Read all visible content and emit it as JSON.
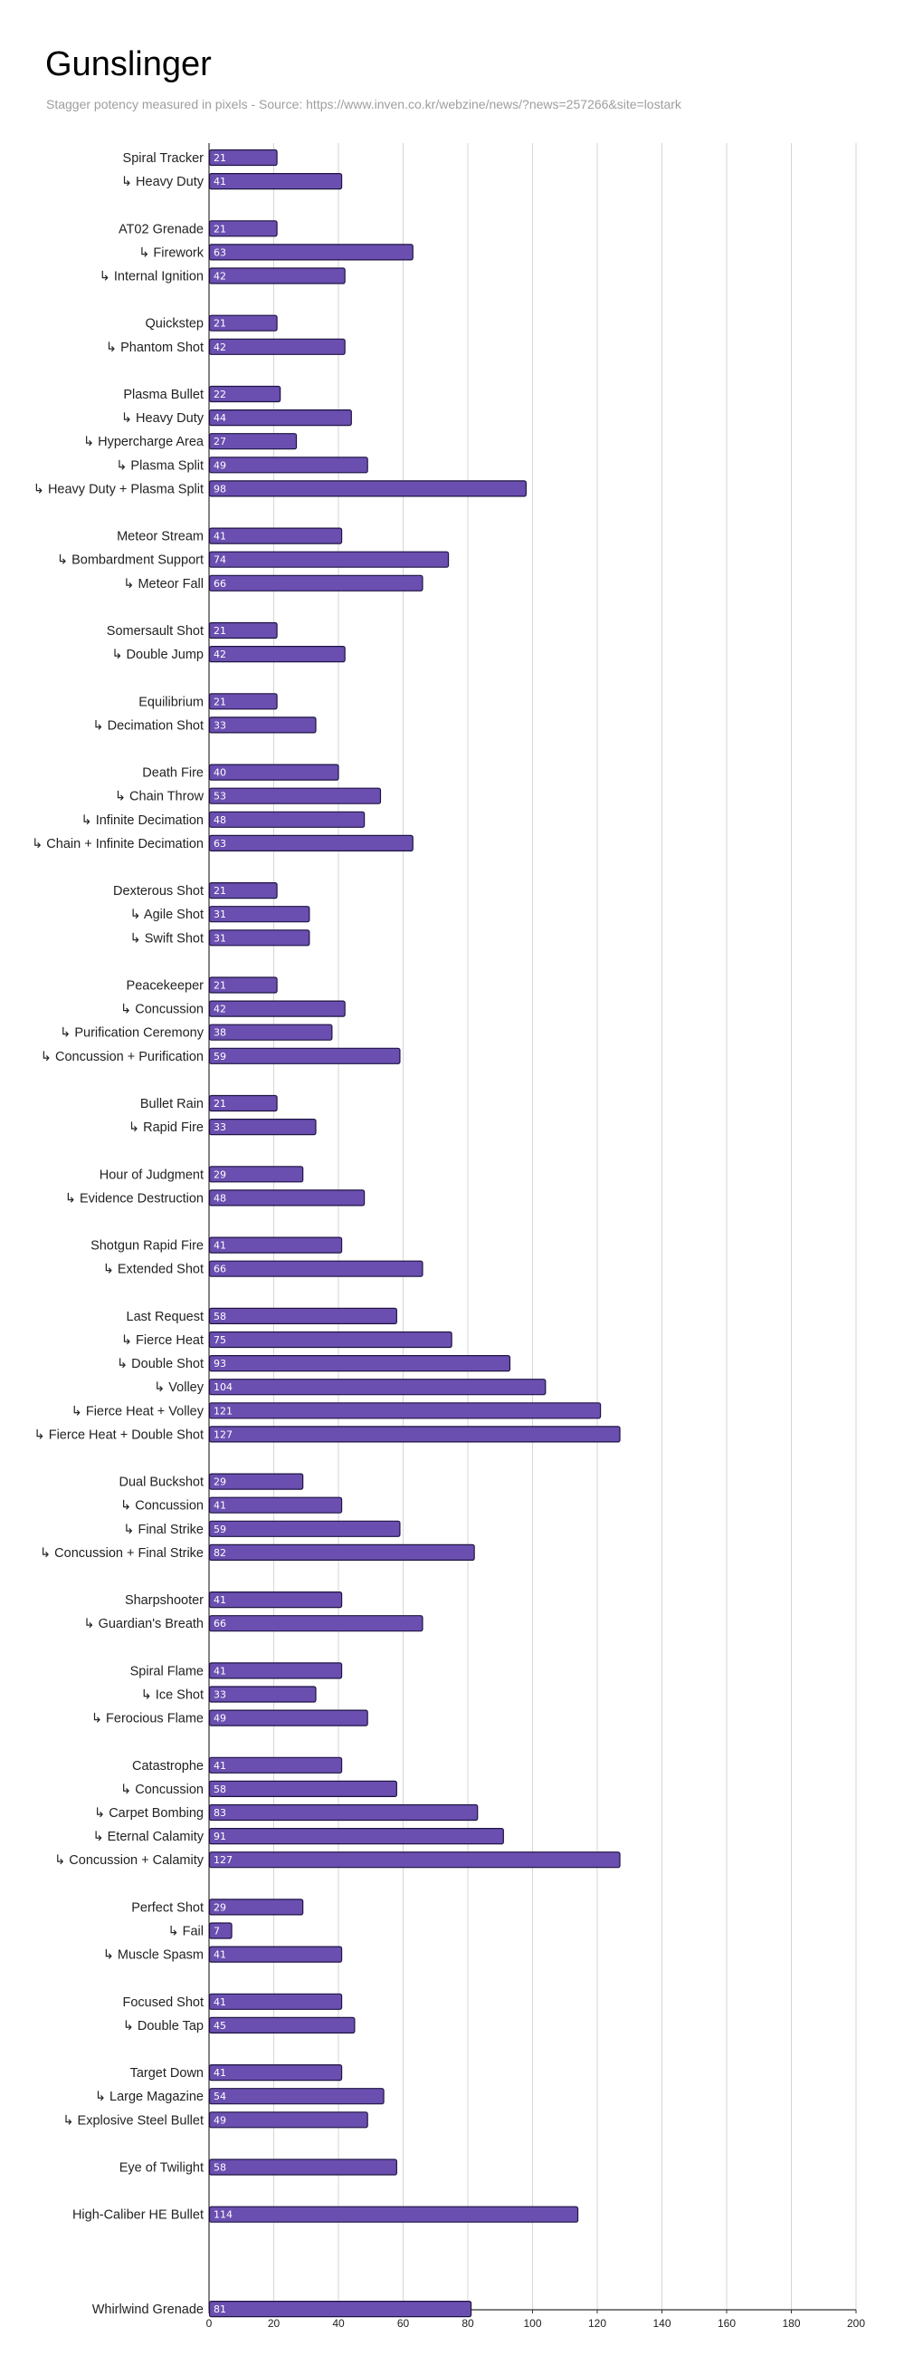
{
  "chart_data": {
    "type": "bar",
    "orientation": "horizontal",
    "title": "Gunslinger",
    "subtitle": "Stagger potency measured in pixels - Source: https://www.inven.co.kr/webzine/news/?news=257266&site=lostark",
    "xlim": [
      0,
      200
    ],
    "xticks": [
      0,
      20,
      40,
      60,
      80,
      100,
      120,
      140,
      160,
      180,
      200
    ],
    "grid": true,
    "bar_color": "#6a4fb0",
    "bar_border_color": "#1e1442",
    "groups": [
      {
        "items": [
          {
            "label": "Spiral Tracker",
            "value": 21
          },
          {
            "label": "↳ Heavy Duty",
            "value": 41
          }
        ]
      },
      {
        "items": [
          {
            "label": "AT02 Grenade",
            "value": 21
          },
          {
            "label": "↳ Firework",
            "value": 63
          },
          {
            "label": "↳ Internal Ignition",
            "value": 42
          }
        ]
      },
      {
        "items": [
          {
            "label": "Quickstep",
            "value": 21
          },
          {
            "label": "↳ Phantom Shot",
            "value": 42
          }
        ]
      },
      {
        "items": [
          {
            "label": "Plasma Bullet",
            "value": 22
          },
          {
            "label": "↳ Heavy Duty",
            "value": 44
          },
          {
            "label": "↳ Hypercharge Area",
            "value": 27
          },
          {
            "label": "↳ Plasma Split",
            "value": 49
          },
          {
            "label": "↳ Heavy Duty + Plasma Split",
            "value": 98
          }
        ]
      },
      {
        "items": [
          {
            "label": "Meteor Stream",
            "value": 41
          },
          {
            "label": "↳ Bombardment Support",
            "value": 74
          },
          {
            "label": "↳ Meteor Fall",
            "value": 66
          }
        ]
      },
      {
        "items": [
          {
            "label": "Somersault Shot",
            "value": 21
          },
          {
            "label": "↳ Double Jump",
            "value": 42
          }
        ]
      },
      {
        "items": [
          {
            "label": "Equilibrium",
            "value": 21
          },
          {
            "label": "↳ Decimation Shot",
            "value": 33
          }
        ]
      },
      {
        "items": [
          {
            "label": "Death Fire",
            "value": 40
          },
          {
            "label": "↳ Chain Throw",
            "value": 53
          },
          {
            "label": "↳ Infinite Decimation",
            "value": 48
          },
          {
            "label": "↳ Chain + Infinite Decimation",
            "value": 63
          }
        ]
      },
      {
        "items": [
          {
            "label": "Dexterous Shot",
            "value": 21
          },
          {
            "label": "↳ Agile Shot",
            "value": 31
          },
          {
            "label": "↳ Swift Shot",
            "value": 31
          }
        ]
      },
      {
        "items": [
          {
            "label": "Peacekeeper",
            "value": 21
          },
          {
            "label": "↳ Concussion",
            "value": 42
          },
          {
            "label": "↳ Purification Ceremony",
            "value": 38
          },
          {
            "label": "↳ Concussion + Purification",
            "value": 59
          }
        ]
      },
      {
        "items": [
          {
            "label": "Bullet Rain",
            "value": 21
          },
          {
            "label": "↳ Rapid Fire",
            "value": 33
          }
        ]
      },
      {
        "items": [
          {
            "label": "Hour of Judgment",
            "value": 29
          },
          {
            "label": "↳ Evidence Destruction",
            "value": 48
          }
        ]
      },
      {
        "items": [
          {
            "label": "Shotgun Rapid Fire",
            "value": 41
          },
          {
            "label": "↳ Extended Shot",
            "value": 66
          }
        ]
      },
      {
        "items": [
          {
            "label": "Last Request",
            "value": 58
          },
          {
            "label": "↳ Fierce Heat",
            "value": 75
          },
          {
            "label": "↳ Double Shot",
            "value": 93
          },
          {
            "label": "↳ Volley",
            "value": 104
          },
          {
            "label": "↳ Fierce Heat + Volley",
            "value": 121
          },
          {
            "label": "↳ Fierce Heat + Double Shot",
            "value": 127
          }
        ]
      },
      {
        "items": [
          {
            "label": "Dual Buckshot",
            "value": 29
          },
          {
            "label": "↳  Concussion",
            "value": 41
          },
          {
            "label": "↳ Final Strike",
            "value": 59
          },
          {
            "label": "↳  Concussion + Final Strike",
            "value": 82
          }
        ]
      },
      {
        "items": [
          {
            "label": "Sharpshooter",
            "value": 41
          },
          {
            "label": "↳ Guardian's Breath",
            "value": 66
          }
        ]
      },
      {
        "items": [
          {
            "label": "Spiral Flame",
            "value": 41
          },
          {
            "label": "↳ Ice Shot",
            "value": 33
          },
          {
            "label": "↳ Ferocious Flame",
            "value": 49
          }
        ]
      },
      {
        "items": [
          {
            "label": "Catastrophe",
            "value": 41
          },
          {
            "label": "↳ Concussion",
            "value": 58
          },
          {
            "label": "↳ Carpet Bombing",
            "value": 83
          },
          {
            "label": "↳ Eternal Calamity",
            "value": 91
          },
          {
            "label": "↳ Concussion + Calamity",
            "value": 127
          }
        ]
      },
      {
        "items": [
          {
            "label": "Perfect Shot",
            "value": 29
          },
          {
            "label": "↳ Fail",
            "value": 7
          },
          {
            "label": "↳ Muscle Spasm",
            "value": 41
          }
        ]
      },
      {
        "items": [
          {
            "label": "Focused Shot",
            "value": 41
          },
          {
            "label": "↳ Double Tap",
            "value": 45
          }
        ]
      },
      {
        "items": [
          {
            "label": "Target Down",
            "value": 41
          },
          {
            "label": "↳ Large Magazine",
            "value": 54
          },
          {
            "label": "↳ Explosive Steel Bullet",
            "value": 49
          }
        ]
      },
      {
        "items": [
          {
            "label": "Eye of Twilight",
            "value": 58
          }
        ]
      },
      {
        "items": [
          {
            "label": "High-Caliber HE Bullet",
            "value": 114
          }
        ]
      },
      {
        "items": [
          {
            "label": "",
            "value": null
          }
        ]
      },
      {
        "items": [
          {
            "label": "Whirlwind Grenade",
            "value": 81
          }
        ]
      }
    ]
  }
}
